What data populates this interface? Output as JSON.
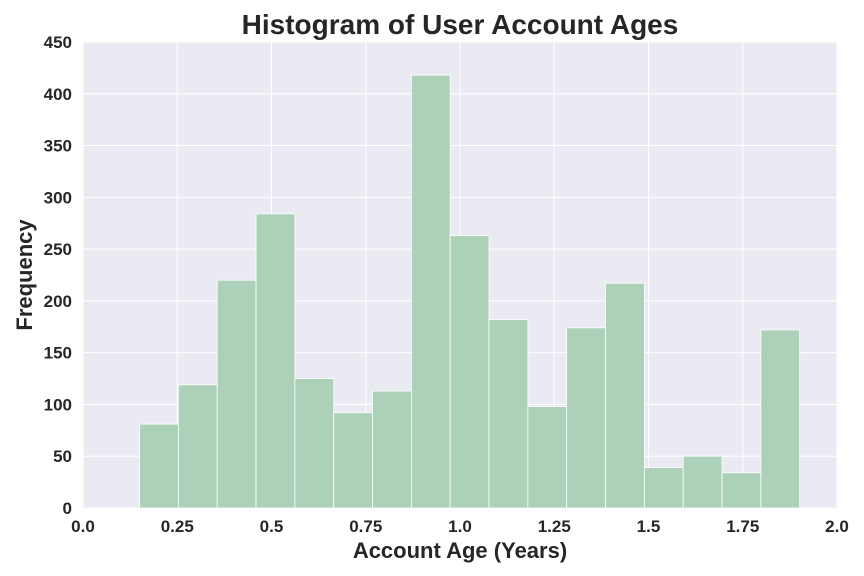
{
  "chart_data": {
    "type": "bar",
    "title": "Histogram of User Account Ages",
    "xlabel": "Account Age (Years)",
    "ylabel": "Frequency",
    "xlim": [
      0.0,
      2.0
    ],
    "ylim": [
      0,
      450
    ],
    "grid": true,
    "x_ticks": [
      "0.0",
      "0.25",
      "0.5",
      "0.75",
      "1.0",
      "1.25",
      "1.5",
      "1.75",
      "2.0"
    ],
    "y_ticks": [
      "0",
      "50",
      "100",
      "150",
      "200",
      "250",
      "300",
      "350",
      "400",
      "450"
    ],
    "bin_edges": [
      0.15,
      0.253,
      0.356,
      0.459,
      0.562,
      0.665,
      0.768,
      0.871,
      0.974,
      1.077,
      1.18,
      1.283,
      1.386,
      1.489,
      1.592,
      1.695,
      1.798,
      1.901
    ],
    "values": [
      81,
      119,
      220,
      284,
      125,
      92,
      113,
      418,
      263,
      182,
      98,
      174,
      217,
      39,
      50,
      34,
      172
    ],
    "colors": {
      "bar": "#add0b9",
      "plot_background": "#eaeaf2",
      "grid": "#ffffff",
      "text": "#262626"
    }
  }
}
